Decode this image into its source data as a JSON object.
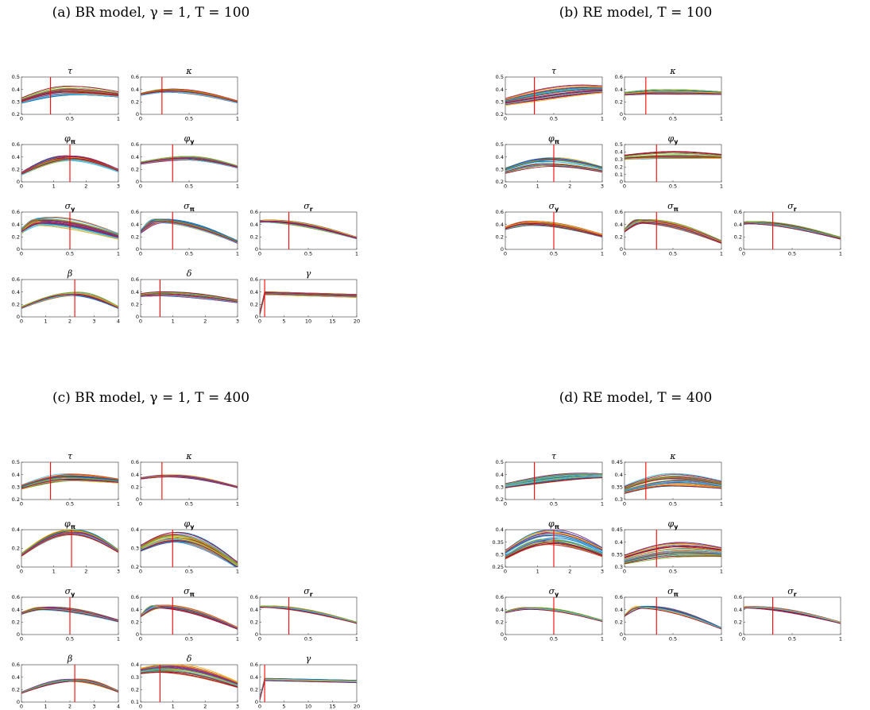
{
  "panels": [
    {
      "id": "a",
      "title": "(a) BR model, γ = 1, T = 100"
    },
    {
      "id": "b",
      "title": "(b) RE model, T = 100"
    },
    {
      "id": "c",
      "title": "(c) BR model, γ = 1, T = 400"
    },
    {
      "id": "d",
      "title": "(d) RE model, T = 400"
    }
  ],
  "colors": [
    "#0072bd",
    "#d95319",
    "#edb120",
    "#7e2f8e",
    "#77ac30",
    "#4dbeee",
    "#a2142f"
  ],
  "true_value_color": "#ff0000",
  "chart_data": [
    {
      "type": "line",
      "panel": "a",
      "title": "τ",
      "xlim": [
        0,
        1
      ],
      "ylim": [
        0.2,
        0.5
      ],
      "xticks": [
        "0",
        "0.5",
        "1"
      ],
      "yticks": [
        "0.2",
        "0.3",
        "0.4",
        "0.5"
      ],
      "true_value": 0.3,
      "peak": 0.5,
      "start": 0.31,
      "top": 0.39,
      "end": 0.36,
      "spread": 0.04
    },
    {
      "type": "line",
      "panel": "a",
      "title": "κ",
      "xlim": [
        0,
        1
      ],
      "ylim": [
        0,
        0.6
      ],
      "xticks": [
        "0",
        "0.5",
        "1"
      ],
      "yticks": [
        "0",
        "0.2",
        "0.4",
        "0.6"
      ],
      "true_value": 0.22,
      "peak": 0.3,
      "start": 0.32,
      "top": 0.38,
      "end": 0.2,
      "spread": 0.03
    },
    {
      "type": "line",
      "panel": "a",
      "title": "φ",
      "sub": "π",
      "xlim": [
        0,
        3
      ],
      "ylim": [
        0,
        0.6
      ],
      "xticks": [
        "0",
        "1",
        "2",
        "3"
      ],
      "yticks": [
        "0",
        "0.2",
        "0.4",
        "0.6"
      ],
      "true_value": 1.5,
      "peak": 1.5,
      "start": 0.13,
      "top": 0.38,
      "end": 0.18,
      "spread": 0.04
    },
    {
      "type": "line",
      "panel": "a",
      "title": "φ",
      "sub": "y",
      "xlim": [
        0,
        1
      ],
      "ylim": [
        0,
        0.6
      ],
      "xticks": [
        "0",
        "0.5",
        "1"
      ],
      "yticks": [
        "0",
        "0.2",
        "0.4",
        "0.6"
      ],
      "true_value": 0.33,
      "peak": 0.45,
      "start": 0.3,
      "top": 0.38,
      "end": 0.24,
      "spread": 0.03
    },
    {
      "type": "line",
      "panel": "a",
      "title": "σ",
      "sub": "y",
      "xlim": [
        0,
        1
      ],
      "ylim": [
        0,
        0.6
      ],
      "xticks": [
        "0",
        "0.5",
        "1"
      ],
      "yticks": [
        "0",
        "0.2",
        "0.4",
        "0.6"
      ],
      "true_value": 0.5,
      "peak": 0.2,
      "start": 0.3,
      "top": 0.45,
      "end": 0.21,
      "spread": 0.08
    },
    {
      "type": "line",
      "panel": "a",
      "title": "σ",
      "sub": "π",
      "xlim": [
        0,
        1
      ],
      "ylim": [
        0,
        0.6
      ],
      "xticks": [
        "0",
        "0.5",
        "1"
      ],
      "yticks": [
        "0",
        "0.2",
        "0.4",
        "0.6"
      ],
      "true_value": 0.33,
      "peak": 0.18,
      "start": 0.28,
      "top": 0.46,
      "end": 0.12,
      "spread": 0.04
    },
    {
      "type": "line",
      "panel": "a",
      "title": "σ",
      "sub": "r",
      "xlim": [
        0,
        1
      ],
      "ylim": [
        0,
        0.6
      ],
      "xticks": [
        "0",
        "0.5",
        "1"
      ],
      "yticks": [
        "0",
        "0.2",
        "0.4",
        "0.6"
      ],
      "true_value": 0.3,
      "peak": 0.02,
      "start": 0.44,
      "top": 0.45,
      "end": 0.18,
      "spread": 0.03
    },
    {
      "type": "line",
      "panel": "a",
      "title": "β",
      "xlim": [
        0,
        4
      ],
      "ylim": [
        0,
        0.6
      ],
      "xticks": [
        "0",
        "1",
        "2",
        "3",
        "4"
      ],
      "yticks": [
        "0",
        "0.2",
        "0.4",
        "0.6"
      ],
      "true_value": 2.2,
      "peak": 2.2,
      "start": 0.15,
      "top": 0.37,
      "end": 0.15,
      "spread": 0.03
    },
    {
      "type": "line",
      "panel": "a",
      "title": "δ",
      "xlim": [
        0,
        3
      ],
      "ylim": [
        0,
        0.6
      ],
      "xticks": [
        "0",
        "1",
        "2",
        "3"
      ],
      "yticks": [
        "0",
        "0.2",
        "0.4",
        "0.6"
      ],
      "true_value": 0.6,
      "peak": 0.6,
      "start": 0.35,
      "top": 0.37,
      "end": 0.25,
      "spread": 0.04
    },
    {
      "type": "line",
      "panel": "a",
      "title": "γ",
      "xlim": [
        0,
        20
      ],
      "ylim": [
        0,
        0.6
      ],
      "xticks": [
        "0",
        "5",
        "10",
        "15",
        "20"
      ],
      "yticks": [
        "0",
        "0.2",
        "0.4",
        "0.6"
      ],
      "true_value": 1,
      "peak": 1.0,
      "start": 0.05,
      "top": 0.38,
      "end": 0.34,
      "spread": 0.03,
      "spike": true
    },
    {
      "type": "line",
      "panel": "b",
      "title": "τ",
      "xlim": [
        0,
        1
      ],
      "ylim": [
        0.2,
        0.5
      ],
      "xticks": [
        "0",
        "0.5",
        "1"
      ],
      "yticks": [
        "0.2",
        "0.3",
        "0.4",
        "0.5"
      ],
      "true_value": 0.3,
      "peak": 1.0,
      "start": 0.3,
      "top": 0.4,
      "end": 0.4,
      "spread": 0.05
    },
    {
      "type": "line",
      "panel": "b",
      "title": "κ",
      "xlim": [
        0,
        1
      ],
      "ylim": [
        0,
        0.6
      ],
      "xticks": [
        "0",
        "0.5",
        "1"
      ],
      "yticks": [
        "0",
        "0.2",
        "0.4",
        "0.6"
      ],
      "true_value": 0.22,
      "peak": 0.4,
      "start": 0.33,
      "top": 0.36,
      "end": 0.34,
      "spread": 0.04
    },
    {
      "type": "line",
      "panel": "b",
      "title": "φ",
      "sub": "π",
      "xlim": [
        0,
        3
      ],
      "ylim": [
        0.2,
        0.5
      ],
      "xticks": [
        "0",
        "1",
        "2",
        "3"
      ],
      "yticks": [
        "0.2",
        "0.3",
        "0.4",
        "0.5"
      ],
      "true_value": 1.5,
      "peak": 1.3,
      "start": 0.29,
      "top": 0.36,
      "end": 0.3,
      "spread": 0.04
    },
    {
      "type": "line",
      "panel": "b",
      "title": "φ",
      "sub": "y",
      "xlim": [
        0,
        1
      ],
      "ylim": [
        0,
        0.5
      ],
      "xticks": [
        "0",
        "0.5",
        "1"
      ],
      "yticks": [
        "0",
        "0.1",
        "0.2",
        "0.3",
        "0.4",
        "0.5"
      ],
      "true_value": 0.33,
      "peak": 0.5,
      "start": 0.33,
      "top": 0.36,
      "end": 0.34,
      "spread": 0.05
    },
    {
      "type": "line",
      "panel": "b",
      "title": "σ",
      "sub": "y",
      "xlim": [
        0,
        1
      ],
      "ylim": [
        0,
        0.6
      ],
      "xticks": [
        "0",
        "0.5",
        "1"
      ],
      "yticks": [
        "0",
        "0.2",
        "0.4",
        "0.6"
      ],
      "true_value": 0.5,
      "peak": 0.25,
      "start": 0.34,
      "top": 0.42,
      "end": 0.22,
      "spread": 0.04
    },
    {
      "type": "line",
      "panel": "b",
      "title": "σ",
      "sub": "π",
      "xlim": [
        0,
        1
      ],
      "ylim": [
        0,
        0.6
      ],
      "xticks": [
        "0",
        "0.5",
        "1"
      ],
      "yticks": [
        "0",
        "0.2",
        "0.4",
        "0.6"
      ],
      "true_value": 0.33,
      "peak": 0.18,
      "start": 0.3,
      "top": 0.45,
      "end": 0.12,
      "spread": 0.04
    },
    {
      "type": "line",
      "panel": "b",
      "title": "σ",
      "sub": "r",
      "xlim": [
        0,
        1
      ],
      "ylim": [
        0,
        0.6
      ],
      "xticks": [
        "0",
        "0.5",
        "1"
      ],
      "yticks": [
        "0",
        "0.2",
        "0.4",
        "0.6"
      ],
      "true_value": 0.3,
      "peak": 0.02,
      "start": 0.42,
      "top": 0.43,
      "end": 0.18,
      "spread": 0.03
    },
    {
      "type": "line",
      "panel": "c",
      "title": "τ",
      "xlim": [
        0,
        1
      ],
      "ylim": [
        0.2,
        0.5
      ],
      "xticks": [
        "0",
        "0.5",
        "1"
      ],
      "yticks": [
        "0.2",
        "0.3",
        "0.4",
        "0.5"
      ],
      "true_value": 0.3,
      "peak": 0.5,
      "start": 0.3,
      "top": 0.38,
      "end": 0.35,
      "spread": 0.03
    },
    {
      "type": "line",
      "panel": "c",
      "title": "κ",
      "xlim": [
        0,
        1
      ],
      "ylim": [
        0,
        0.6
      ],
      "xticks": [
        "0",
        "0.5",
        "1"
      ],
      "yticks": [
        "0",
        "0.2",
        "0.4",
        "0.6"
      ],
      "true_value": 0.22,
      "peak": 0.3,
      "start": 0.34,
      "top": 0.38,
      "end": 0.2,
      "spread": 0.02
    },
    {
      "type": "line",
      "panel": "c",
      "title": "φ",
      "sub": "π",
      "xlim": [
        0,
        3
      ],
      "ylim": [
        0,
        0.4
      ],
      "xticks": [
        "0",
        "1",
        "2",
        "3"
      ],
      "yticks": [
        "0",
        "0.2",
        "0.4"
      ],
      "true_value": 1.55,
      "peak": 1.55,
      "start": 0.13,
      "top": 0.37,
      "end": 0.17,
      "spread": 0.03
    },
    {
      "type": "line",
      "panel": "c",
      "title": "φ",
      "sub": "y",
      "xlim": [
        0,
        1
      ],
      "ylim": [
        0.2,
        0.4
      ],
      "xticks": [
        "0",
        "0.5",
        "1"
      ],
      "yticks": [
        "0.2",
        "0.3",
        "0.4"
      ],
      "true_value": 0.33,
      "peak": 0.35,
      "start": 0.3,
      "top": 0.36,
      "end": 0.21,
      "spread": 0.03
    },
    {
      "type": "line",
      "panel": "c",
      "title": "σ",
      "sub": "y",
      "xlim": [
        0,
        1
      ],
      "ylim": [
        0,
        0.6
      ],
      "xticks": [
        "0",
        "0.5",
        "1"
      ],
      "yticks": [
        "0",
        "0.2",
        "0.4",
        "0.6"
      ],
      "true_value": 0.5,
      "peak": 0.25,
      "start": 0.34,
      "top": 0.42,
      "end": 0.22,
      "spread": 0.03
    },
    {
      "type": "line",
      "panel": "c",
      "title": "σ",
      "sub": "π",
      "xlim": [
        0,
        1
      ],
      "ylim": [
        0,
        0.6
      ],
      "xticks": [
        "0",
        "0.5",
        "1"
      ],
      "yticks": [
        "0",
        "0.2",
        "0.4",
        "0.6"
      ],
      "true_value": 0.33,
      "peak": 0.18,
      "start": 0.3,
      "top": 0.45,
      "end": 0.1,
      "spread": 0.03
    },
    {
      "type": "line",
      "panel": "c",
      "title": "σ",
      "sub": "r",
      "xlim": [
        0,
        1
      ],
      "ylim": [
        0,
        0.6
      ],
      "xticks": [
        "0",
        "0.5",
        "1"
      ],
      "yticks": [
        "0",
        "0.2",
        "0.4",
        "0.6"
      ],
      "true_value": 0.3,
      "peak": 0.02,
      "start": 0.44,
      "top": 0.45,
      "end": 0.19,
      "spread": 0.02
    },
    {
      "type": "line",
      "panel": "c",
      "title": "β",
      "xlim": [
        0,
        4
      ],
      "ylim": [
        0,
        0.6
      ],
      "xticks": [
        "0",
        "1",
        "2",
        "3",
        "4"
      ],
      "yticks": [
        "0",
        "0.2",
        "0.4",
        "0.6"
      ],
      "true_value": 2.2,
      "peak": 2.2,
      "start": 0.15,
      "top": 0.35,
      "end": 0.17,
      "spread": 0.02
    },
    {
      "type": "line",
      "panel": "c",
      "title": "δ",
      "xlim": [
        0,
        3
      ],
      "ylim": [
        0.1,
        0.4
      ],
      "xticks": [
        "0",
        "1",
        "2",
        "3"
      ],
      "yticks": [
        "0.1",
        "0.2",
        "0.3",
        "0.4"
      ],
      "true_value": 0.6,
      "peak": 0.8,
      "start": 0.35,
      "top": 0.37,
      "end": 0.24,
      "spread": 0.04
    },
    {
      "type": "line",
      "panel": "c",
      "title": "γ",
      "xlim": [
        0,
        20
      ],
      "ylim": [
        0,
        0.6
      ],
      "xticks": [
        "0",
        "5",
        "10",
        "15",
        "20"
      ],
      "yticks": [
        "0",
        "0.2",
        "0.4",
        "0.6"
      ],
      "true_value": 1,
      "peak": 1.0,
      "start": 0.05,
      "top": 0.36,
      "end": 0.33,
      "spread": 0.02,
      "spike": true
    },
    {
      "type": "line",
      "panel": "d",
      "title": "τ",
      "xlim": [
        0,
        1
      ],
      "ylim": [
        0.2,
        0.5
      ],
      "xticks": [
        "0",
        "0.5",
        "1"
      ],
      "yticks": [
        "0.2",
        "0.3",
        "0.4",
        "0.5"
      ],
      "true_value": 0.3,
      "peak": 0.9,
      "start": 0.31,
      "top": 0.39,
      "end": 0.39,
      "spread": 0.03
    },
    {
      "type": "line",
      "panel": "d",
      "title": "κ",
      "xlim": [
        0,
        1
      ],
      "ylim": [
        0.3,
        0.45
      ],
      "xticks": [
        "0",
        "0.5",
        "1"
      ],
      "yticks": [
        "0.3",
        "0.35",
        "0.4",
        "0.45"
      ],
      "true_value": 0.22,
      "peak": 0.5,
      "start": 0.34,
      "top": 0.38,
      "end": 0.36,
      "spread": 0.03
    },
    {
      "type": "line",
      "panel": "d",
      "title": "φ",
      "sub": "π",
      "xlim": [
        0,
        3
      ],
      "ylim": [
        0.25,
        0.4
      ],
      "xticks": [
        "0",
        "1",
        "2",
        "3"
      ],
      "yticks": [
        "0.25",
        "0.3",
        "0.35",
        "0.4"
      ],
      "true_value": 1.5,
      "peak": 1.4,
      "start": 0.3,
      "top": 0.37,
      "end": 0.31,
      "spread": 0.03
    },
    {
      "type": "line",
      "panel": "d",
      "title": "φ",
      "sub": "y",
      "xlim": [
        0,
        1
      ],
      "ylim": [
        0.3,
        0.45
      ],
      "xticks": [
        "0",
        "0.5",
        "1"
      ],
      "yticks": [
        "0.3",
        "0.35",
        "0.4",
        "0.45"
      ],
      "true_value": 0.33,
      "peak": 0.6,
      "start": 0.33,
      "top": 0.37,
      "end": 0.36,
      "spread": 0.03
    },
    {
      "type": "line",
      "panel": "d",
      "title": "σ",
      "sub": "y",
      "xlim": [
        0,
        1
      ],
      "ylim": [
        0,
        0.6
      ],
      "xticks": [
        "0",
        "0.5",
        "1"
      ],
      "yticks": [
        "0",
        "0.2",
        "0.4",
        "0.6"
      ],
      "true_value": 0.5,
      "peak": 0.25,
      "start": 0.36,
      "top": 0.42,
      "end": 0.22,
      "spread": 0.02
    },
    {
      "type": "line",
      "panel": "d",
      "title": "σ",
      "sub": "π",
      "xlim": [
        0,
        1
      ],
      "ylim": [
        0,
        0.6
      ],
      "xticks": [
        "0",
        "0.5",
        "1"
      ],
      "yticks": [
        "0",
        "0.2",
        "0.4",
        "0.6"
      ],
      "true_value": 0.33,
      "peak": 0.18,
      "start": 0.3,
      "top": 0.44,
      "end": 0.1,
      "spread": 0.02
    },
    {
      "type": "line",
      "panel": "d",
      "title": "σ",
      "sub": "r",
      "xlim": [
        0,
        1
      ],
      "ylim": [
        0,
        0.6
      ],
      "xticks": [
        "0",
        "0.5",
        "1"
      ],
      "yticks": [
        "0",
        "0.2",
        "0.4",
        "0.6"
      ],
      "true_value": 0.3,
      "peak": 0.02,
      "start": 0.43,
      "top": 0.44,
      "end": 0.19,
      "spread": 0.02
    }
  ]
}
